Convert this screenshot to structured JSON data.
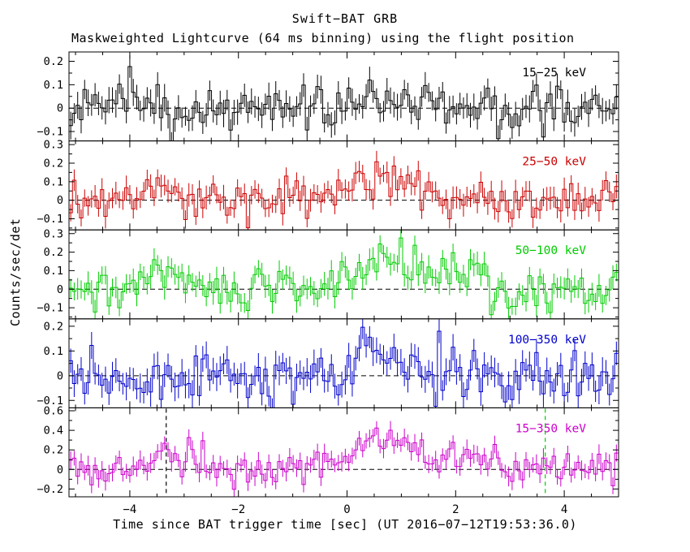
{
  "title": "Swift−BAT GRB",
  "subtitle": "Maskweighted Lightcurve (64 ms binning) using the flight position",
  "x_axis_label": "Time since BAT trigger time [sec] (UT 2016−07−12T19:53:36.0)",
  "y_axis_label": "Counts/sec/det",
  "chart_data": {
    "type": "line",
    "style": "histogram-with-error-bars",
    "x_range": [
      -5.12,
      5.0
    ],
    "bin_width_sec": 0.064,
    "x_major_ticks": [
      -4,
      -2,
      0,
      2,
      4
    ],
    "x_major_tick_labels": [
      "−4",
      "−2",
      "0",
      "2",
      "4"
    ],
    "x_minor_tick_step": 0.5,
    "grid": false,
    "zero_line": {
      "style": "dashed",
      "color": "#000000"
    },
    "panels": [
      {
        "label": "15−25 keV",
        "color": "#000000",
        "ylim": [
          -0.14,
          0.24
        ],
        "yticks": [
          -0.1,
          0,
          0.1,
          0.2
        ],
        "y_minor_step": 0.05,
        "noise_sigma": 0.05,
        "error_bar": 0.05,
        "seed": 101,
        "features": [
          {
            "amp": 0.05,
            "center": 0.7,
            "width": 0.5
          }
        ]
      },
      {
        "label": "25−50 keV",
        "color": "#cc0000",
        "ylim": [
          -0.16,
          0.32
        ],
        "yticks": [
          -0.1,
          0,
          0.1,
          0.2,
          0.3
        ],
        "y_minor_step": 0.05,
        "noise_sigma": 0.055,
        "error_bar": 0.055,
        "seed": 202,
        "features": [
          {
            "amp": 0.12,
            "center": 0.55,
            "width": 0.55
          },
          {
            "amp": 0.05,
            "center": -3.3,
            "width": 0.3
          }
        ]
      },
      {
        "label": "50−100 keV",
        "color": "#00cc00",
        "ylim": [
          -0.16,
          0.32
        ],
        "yticks": [
          -0.1,
          0,
          0.1,
          0.2,
          0.3
        ],
        "y_minor_step": 0.05,
        "noise_sigma": 0.055,
        "error_bar": 0.055,
        "seed": 303,
        "features": [
          {
            "amp": 0.17,
            "center": 0.8,
            "width": 0.5
          },
          {
            "amp": 0.08,
            "center": -3.3,
            "width": 0.35
          },
          {
            "amp": 0.06,
            "center": 2.3,
            "width": 0.4
          }
        ]
      },
      {
        "label": "100−350 keV",
        "color": "#0000cc",
        "ylim": [
          -0.13,
          0.23
        ],
        "yticks": [
          -0.1,
          0,
          0.1,
          0.2
        ],
        "y_minor_step": 0.05,
        "noise_sigma": 0.05,
        "error_bar": 0.05,
        "seed": 404,
        "features": [
          {
            "amp": 0.14,
            "center": 0.35,
            "width": 0.12
          },
          {
            "amp": 0.07,
            "center": 0.8,
            "width": 0.4
          }
        ]
      },
      {
        "label": "15−350 keV",
        "color": "#cc00cc",
        "ylim": [
          -0.28,
          0.63
        ],
        "yticks": [
          -0.2,
          0,
          0.2,
          0.4,
          0.6
        ],
        "y_minor_step": 0.1,
        "noise_sigma": 0.085,
        "error_bar": 0.085,
        "seed": 505,
        "features": [
          {
            "amp": 0.34,
            "center": 0.65,
            "width": 0.55
          },
          {
            "amp": 0.16,
            "center": -3.3,
            "width": 0.35
          },
          {
            "amp": 0.12,
            "center": 2.4,
            "width": 0.45
          }
        ]
      }
    ],
    "annotations": [
      {
        "type": "vline",
        "panel_index": 4,
        "x": -3.33,
        "color": "#000000",
        "style": "dashed"
      },
      {
        "type": "vline",
        "panel_index": 4,
        "x": 3.65,
        "color": "#00cc00",
        "style": "dashed"
      }
    ]
  }
}
